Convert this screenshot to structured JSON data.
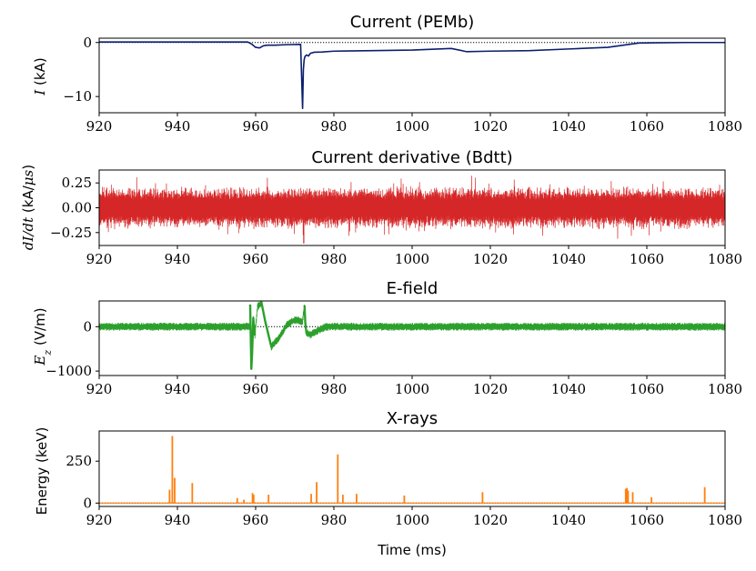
{
  "chart_data": [
    {
      "id": "current",
      "type": "line",
      "title": "Current (PEMb)",
      "xlabel": "",
      "ylabel_math": "I",
      "ylabel_unit": " (kA)",
      "xlim": [
        920,
        1080
      ],
      "ylim": [
        -13,
        0.8
      ],
      "xticks": [
        920,
        940,
        960,
        980,
        1000,
        1020,
        1040,
        1060,
        1080
      ],
      "yticks": [
        0,
        -10
      ],
      "ytick_labels": [
        "0",
        "−10"
      ],
      "color": "#0b1f6e",
      "zero_line": true,
      "series": [
        {
          "name": "I",
          "x": [
            920,
            958,
            959,
            960,
            961,
            962,
            963,
            965,
            968,
            971.5,
            972.0,
            972.2,
            972.4,
            972.6,
            973.0,
            973.5,
            974,
            975,
            977,
            980,
            990,
            1000,
            1010,
            1014,
            1020,
            1030,
            1040,
            1050,
            1058,
            1062,
            1070,
            1080
          ],
          "y": [
            0.1,
            0.1,
            -0.3,
            -0.9,
            -1.0,
            -0.6,
            -0.5,
            -0.5,
            -0.4,
            -0.35,
            -12.2,
            -5.0,
            -3.2,
            -2.6,
            -2.3,
            -2.5,
            -2.0,
            -1.8,
            -1.75,
            -1.6,
            -1.5,
            -1.4,
            -1.1,
            -1.7,
            -1.6,
            -1.5,
            -1.2,
            -0.9,
            -0.1,
            -0.05,
            0,
            0
          ]
        }
      ]
    },
    {
      "id": "derivative",
      "type": "line",
      "title": "Current derivative (Bdtt)",
      "xlabel": "",
      "ylabel_math": "dI/dt",
      "ylabel_unit": " (kA/",
      "ylabel_unit_math": "μs",
      "ylabel_unit_end": ")",
      "xlim": [
        920,
        1080
      ],
      "ylim": [
        -0.38,
        0.38
      ],
      "xticks": [
        920,
        940,
        960,
        980,
        1000,
        1020,
        1040,
        1060,
        1080
      ],
      "yticks": [
        0.25,
        0,
        -0.25
      ],
      "ytick_labels": [
        "0.25",
        "0.00",
        "−0.25"
      ],
      "color": "#d62728",
      "zero_line": true,
      "noise": {
        "amplitude": 0.22,
        "peak_amplitude": 0.34,
        "spike_x": 972.3,
        "spike_y": -0.36
      }
    },
    {
      "id": "efield",
      "type": "line",
      "title": "E-field",
      "xlabel": "",
      "ylabel_math": "E",
      "ylabel_sub": "z",
      "ylabel_unit": " (V/m)",
      "xlim": [
        920,
        1080
      ],
      "ylim": [
        -1100,
        580
      ],
      "xticks": [
        920,
        940,
        960,
        980,
        1000,
        1020,
        1040,
        1060,
        1080
      ],
      "yticks": [
        0,
        -1000
      ],
      "ytick_labels": [
        "0",
        "−1000"
      ],
      "color": "#2ca02c",
      "zero_line": true,
      "noise": {
        "amplitude": 90
      },
      "features": [
        {
          "x": [
            958.6,
            958.9,
            959.1,
            959.4,
            959.8
          ],
          "y": [
            500,
            -950,
            -600,
            200,
            -200
          ]
        },
        {
          "x": [
            960.5,
            961.5,
            962.5,
            964,
            966,
            968,
            970,
            972
          ],
          "y": [
            450,
            540,
            100,
            -450,
            -250,
            50,
            150,
            120
          ]
        },
        {
          "x": [
            972.5,
            972.7,
            973.0,
            974,
            976,
            978
          ],
          "y": [
            480,
            80,
            -150,
            -180,
            -80,
            0
          ]
        }
      ]
    },
    {
      "id": "xrays",
      "type": "bar",
      "title": "X-rays",
      "xlabel": "Time (ms)",
      "ylabel": "Energy (keV)",
      "xlim": [
        920,
        1080
      ],
      "ylim": [
        -20,
        430
      ],
      "xticks": [
        920,
        940,
        960,
        980,
        1000,
        1020,
        1040,
        1060,
        1080
      ],
      "yticks": [
        250,
        0
      ],
      "ytick_labels": [
        "250",
        "0"
      ],
      "color": "#ff7f0e",
      "zero_line": true,
      "x": [
        938.0,
        938.7,
        939.3,
        943.8,
        955.3,
        957.0,
        959.2,
        959.5,
        963.3,
        974.2,
        975.6,
        981.0,
        982.3,
        985.8,
        998.0,
        1018.0,
        1054.6,
        1054.9,
        1055.2,
        1056.4,
        1061.2,
        1074.8
      ],
      "values": [
        80,
        400,
        150,
        120,
        30,
        20,
        60,
        50,
        50,
        55,
        125,
        290,
        50,
        55,
        45,
        65,
        85,
        90,
        75,
        65,
        35,
        95
      ]
    }
  ]
}
